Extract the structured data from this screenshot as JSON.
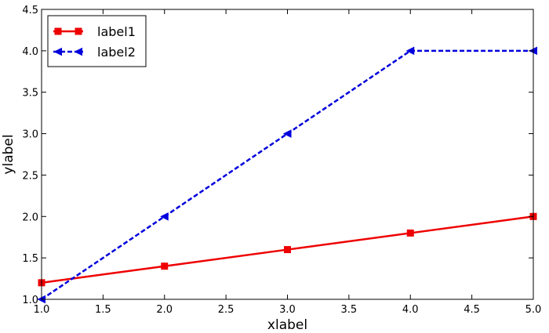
{
  "chart_data": {
    "type": "line",
    "title": "",
    "xlabel": "xlabel",
    "ylabel": "ylabel",
    "xlim": [
      1.0,
      5.0
    ],
    "ylim": [
      1.0,
      4.5
    ],
    "xticks": [
      "1.0",
      "1.5",
      "2.0",
      "2.5",
      "3.0",
      "3.5",
      "4.0",
      "4.5",
      "5.0"
    ],
    "yticks": [
      "1.0",
      "1.5",
      "2.0",
      "2.5",
      "3.0",
      "3.5",
      "4.0",
      "4.5"
    ],
    "grid": false,
    "legend_position": "top-left",
    "series": [
      {
        "name": "label1",
        "x": [
          1,
          2,
          3,
          4,
          5
        ],
        "y": [
          1.2,
          1.4,
          1.6,
          1.8,
          2.0
        ],
        "color": "#ee0000",
        "line_style": "solid",
        "marker": "square"
      },
      {
        "name": "label2",
        "x": [
          1,
          2,
          3,
          4,
          5
        ],
        "y": [
          1.0,
          2.0,
          3.0,
          4.0,
          4.0
        ],
        "color": "#0000dd",
        "line_style": "dashed",
        "marker": "triangle-left"
      }
    ]
  }
}
